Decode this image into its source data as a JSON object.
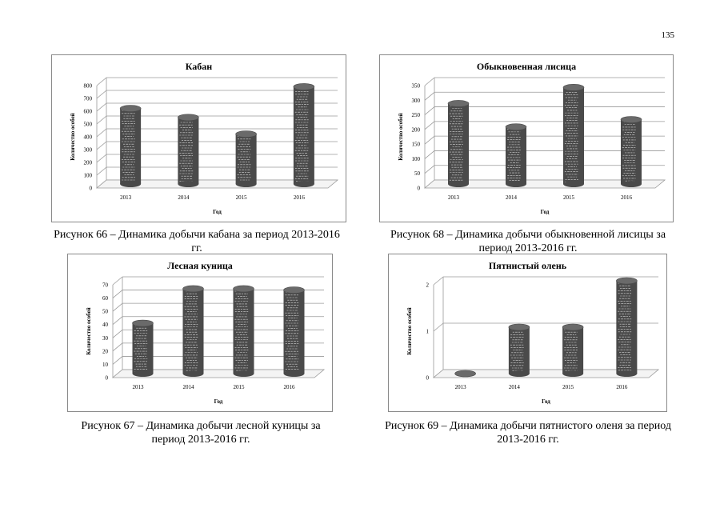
{
  "page_number": "135",
  "colors": {
    "bar": "#4a4a4a",
    "bar_top": "#6a6a6a",
    "bar_texture": "#d8d8d8",
    "grid": "#9a9a9a"
  },
  "chart_data": [
    {
      "type": "bar",
      "title": "Кабан",
      "categories": [
        "2013",
        "2014",
        "2015",
        "2016"
      ],
      "values": [
        590,
        520,
        390,
        760
      ],
      "ylabel": "Количество особей",
      "xlabel": "Год",
      "ylim": [
        0,
        800
      ],
      "yticks": [
        "0",
        "100",
        "200",
        "300",
        "400",
        "500",
        "600",
        "700",
        "800"
      ],
      "grid": true,
      "style": "3d-cylinder"
    },
    {
      "type": "bar",
      "title": "Лесная куница",
      "categories": [
        "2013",
        "2014",
        "2015",
        "2016"
      ],
      "values": [
        38,
        64,
        64,
        63
      ],
      "ylabel": "Количество особей",
      "xlabel": "Год",
      "ylim": [
        0,
        70
      ],
      "yticks": [
        "0",
        "10",
        "20",
        "30",
        "40",
        "50",
        "60",
        "70"
      ],
      "grid": true,
      "style": "3d-cylinder"
    },
    {
      "type": "bar",
      "title": "Обыкновенная лисица",
      "categories": [
        "2013",
        "2014",
        "2015",
        "2016"
      ],
      "values": [
        275,
        195,
        330,
        220
      ],
      "ylabel": "Количество особей",
      "xlabel": "Год",
      "ylim": [
        0,
        350
      ],
      "yticks": [
        "0",
        "50",
        "100",
        "150",
        "200",
        "250",
        "300",
        "350"
      ],
      "grid": true,
      "style": "3d-cylinder"
    },
    {
      "type": "bar",
      "title": "Пятнистый олень",
      "categories": [
        "2013",
        "2014",
        "2015",
        "2016"
      ],
      "values": [
        0,
        1,
        1,
        2
      ],
      "ylabel": "Количество особей",
      "xlabel": "Год",
      "ylim": [
        0,
        2
      ],
      "yticks": [
        "0",
        "1",
        "2"
      ],
      "grid": true,
      "style": "3d-cylinder"
    }
  ],
  "captions": [
    "Рисунок 66 – Динамика добычи кабана за период 2013-2016 гг.",
    "Рисунок 67 – Динамика добычи лесной куницы за период 2013-2016 гг.",
    "Рисунок 68 – Динамика добычи обыкновенной лисицы за период 2013-2016 гг.",
    "Рисунок 69 – Динамика добычи пятнистого оленя за период 2013-2016 гг."
  ]
}
